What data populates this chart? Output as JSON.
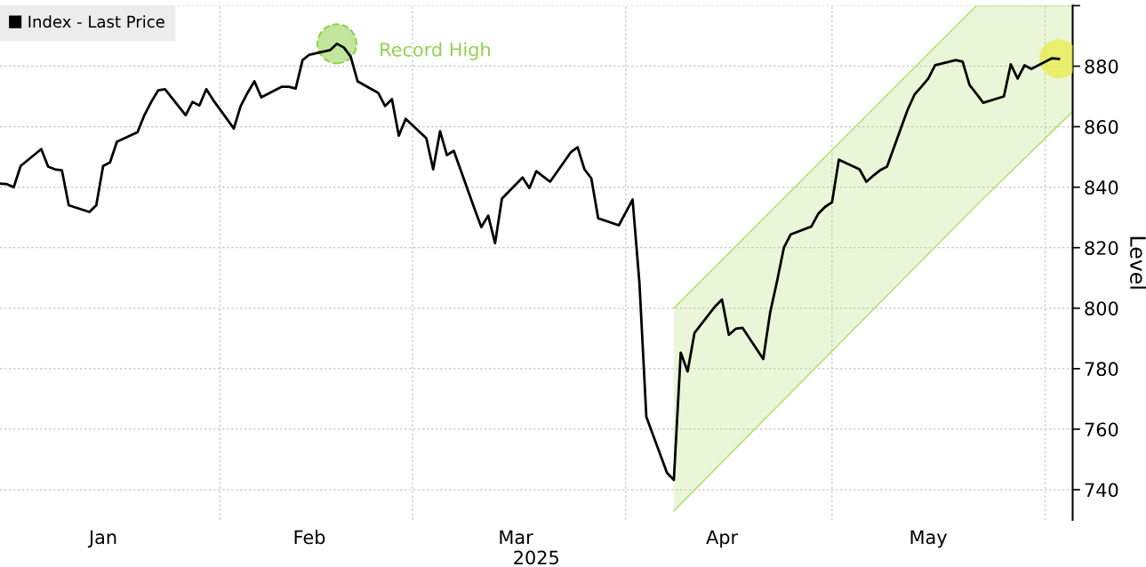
{
  "chart_data": {
    "type": "line",
    "xlabel": "2025",
    "ylabel": "Level",
    "xlim": [
      "2024-12-31",
      "2025-06-05"
    ],
    "xticks": [
      {
        "value": "2025-01-15",
        "label": "Jan"
      },
      {
        "value": "2025-02-01",
        "label": null
      },
      {
        "value": "2025-02-14",
        "label": "Feb"
      },
      {
        "value": "2025-03-01",
        "label": null
      },
      {
        "value": "2025-03-16",
        "label": "Mar"
      },
      {
        "value": "2025-04-01",
        "label": null
      },
      {
        "value": "2025-04-15",
        "label": "Apr"
      },
      {
        "value": "2025-05-01",
        "label": null
      },
      {
        "value": "2025-05-15",
        "label": "May"
      },
      {
        "value": "2025-06-01",
        "label": null
      }
    ],
    "ylim": [
      730,
      900
    ],
    "yticks": [
      740,
      760,
      780,
      800,
      820,
      840,
      860,
      880,
      {
        "value": 900,
        "label": null
      }
    ],
    "grid": true,
    "legend": "top left",
    "line_style": "solid",
    "marker": "none",
    "annotations": [
      {
        "text": "Record High",
        "x": "2025-02-18",
        "y": 887.4
      }
    ],
    "series": [
      {
        "color": "#b9e07e",
        "x": [
          "2025-04-08",
          "2025-05-22",
          "2025-06-05"
        ],
        "values": [
          800,
          900,
          900
        ],
        "lower": [
          733,
          834,
          865
        ],
        "upper": [
          800,
          900,
          900
        ]
      },
      {
        "color": "#b9e07e",
        "x": [
          "2025-04-08",
          "2025-05-22",
          "2025-06-05"
        ],
        "values": [
          733,
          834,
          865
        ]
      },
      {
        "type": "line",
        "name": "Index - Last Price",
        "color": "#000000",
        "x": [
          "2024-12-31",
          "2025-01-01",
          "2025-01-02",
          "2025-01-03",
          "2025-01-06",
          "2025-01-07",
          "2025-01-08",
          "2025-01-09",
          "2025-01-10",
          "2025-01-13",
          "2025-01-14",
          "2025-01-15",
          "2025-01-16",
          "2025-01-17",
          "2025-01-20",
          "2025-01-21",
          "2025-01-22",
          "2025-01-23",
          "2025-01-24",
          "2025-01-27",
          "2025-01-28",
          "2025-01-29",
          "2025-01-30",
          "2025-01-31",
          "2025-02-03",
          "2025-02-04",
          "2025-02-05",
          "2025-02-06",
          "2025-02-07",
          "2025-02-10",
          "2025-02-11",
          "2025-02-12",
          "2025-02-13",
          "2025-02-14",
          "2025-02-17",
          "2025-02-18",
          "2025-02-19",
          "2025-02-20",
          "2025-02-21",
          "2025-02-24",
          "2025-02-25",
          "2025-02-26",
          "2025-02-27",
          "2025-02-28",
          "2025-03-03",
          "2025-03-04",
          "2025-03-05",
          "2025-03-06",
          "2025-03-07",
          "2025-03-10",
          "2025-03-11",
          "2025-03-12",
          "2025-03-13",
          "2025-03-14",
          "2025-03-17",
          "2025-03-18",
          "2025-03-19",
          "2025-03-20",
          "2025-03-21",
          "2025-03-24",
          "2025-03-25",
          "2025-03-26",
          "2025-03-27",
          "2025-03-28",
          "2025-03-31",
          "2025-04-02",
          "2025-04-03",
          "2025-04-04",
          "2025-04-07",
          "2025-04-08",
          "2025-04-09",
          "2025-04-10",
          "2025-04-11",
          "2025-04-14",
          "2025-04-15",
          "2025-04-16",
          "2025-04-17",
          "2025-04-18",
          "2025-04-21",
          "2025-04-22",
          "2025-04-23",
          "2025-04-24",
          "2025-04-25",
          "2025-04-28",
          "2025-04-29",
          "2025-04-30",
          "2025-05-01",
          "2025-05-02",
          "2025-05-05",
          "2025-05-06",
          "2025-05-07",
          "2025-05-08",
          "2025-05-09",
          "2025-05-12",
          "2025-05-13",
          "2025-05-14",
          "2025-05-15",
          "2025-05-16",
          "2025-05-19",
          "2025-05-20",
          "2025-05-21",
          "2025-05-22",
          "2025-05-23",
          "2025-05-26",
          "2025-05-27",
          "2025-05-28",
          "2025-05-29",
          "2025-05-30",
          "2025-06-02",
          "2025-06-03"
        ],
        "values": [
          841.2,
          841,
          840,
          847,
          852.6,
          846.8,
          845.9,
          845.6,
          834,
          831.8,
          834,
          847,
          848.2,
          855,
          858.2,
          863.8,
          868.2,
          872,
          872.4,
          863.8,
          868.2,
          867,
          872.4,
          868.8,
          859.4,
          866.8,
          871.2,
          875,
          869.7,
          873.2,
          873.2,
          872.6,
          882,
          883.8,
          885.3,
          887.4,
          886.2,
          883.2,
          875,
          871.2,
          866.8,
          869.1,
          857,
          862.6,
          856.2,
          845.9,
          858.5,
          850.6,
          852,
          832.9,
          826.8,
          830.6,
          821.5,
          836.2,
          843.2,
          839.7,
          845.3,
          843.5,
          841.8,
          851.5,
          853.2,
          845.9,
          842.9,
          829.7,
          827.4,
          835.9,
          808.2,
          764.1,
          745.6,
          743.2,
          785.3,
          779.1,
          791.8,
          800.6,
          802.9,
          791.2,
          793.2,
          793.5,
          783.2,
          798.5,
          808.8,
          820,
          824.4,
          827,
          831.2,
          833.5,
          835,
          849.1,
          845.9,
          841.8,
          843.8,
          845.6,
          846.8,
          865.6,
          870.6,
          873.2,
          875.9,
          880.3,
          882,
          881.5,
          873.8,
          870.9,
          867.9,
          870,
          880.6,
          875.9,
          880.3,
          879.1,
          882.6,
          882.4
        ]
      },
      {
        "type": "scatter",
        "color": "#8fd14f",
        "marker": "circle",
        "line_style": "dashed",
        "x": [
          "2025-02-18"
        ],
        "values": [
          887.4
        ]
      },
      {
        "type": "scatter",
        "color": "#e8ec4a",
        "marker": "circle",
        "x": [
          "2025-06-03"
        ],
        "values": [
          882.4
        ]
      }
    ]
  }
}
